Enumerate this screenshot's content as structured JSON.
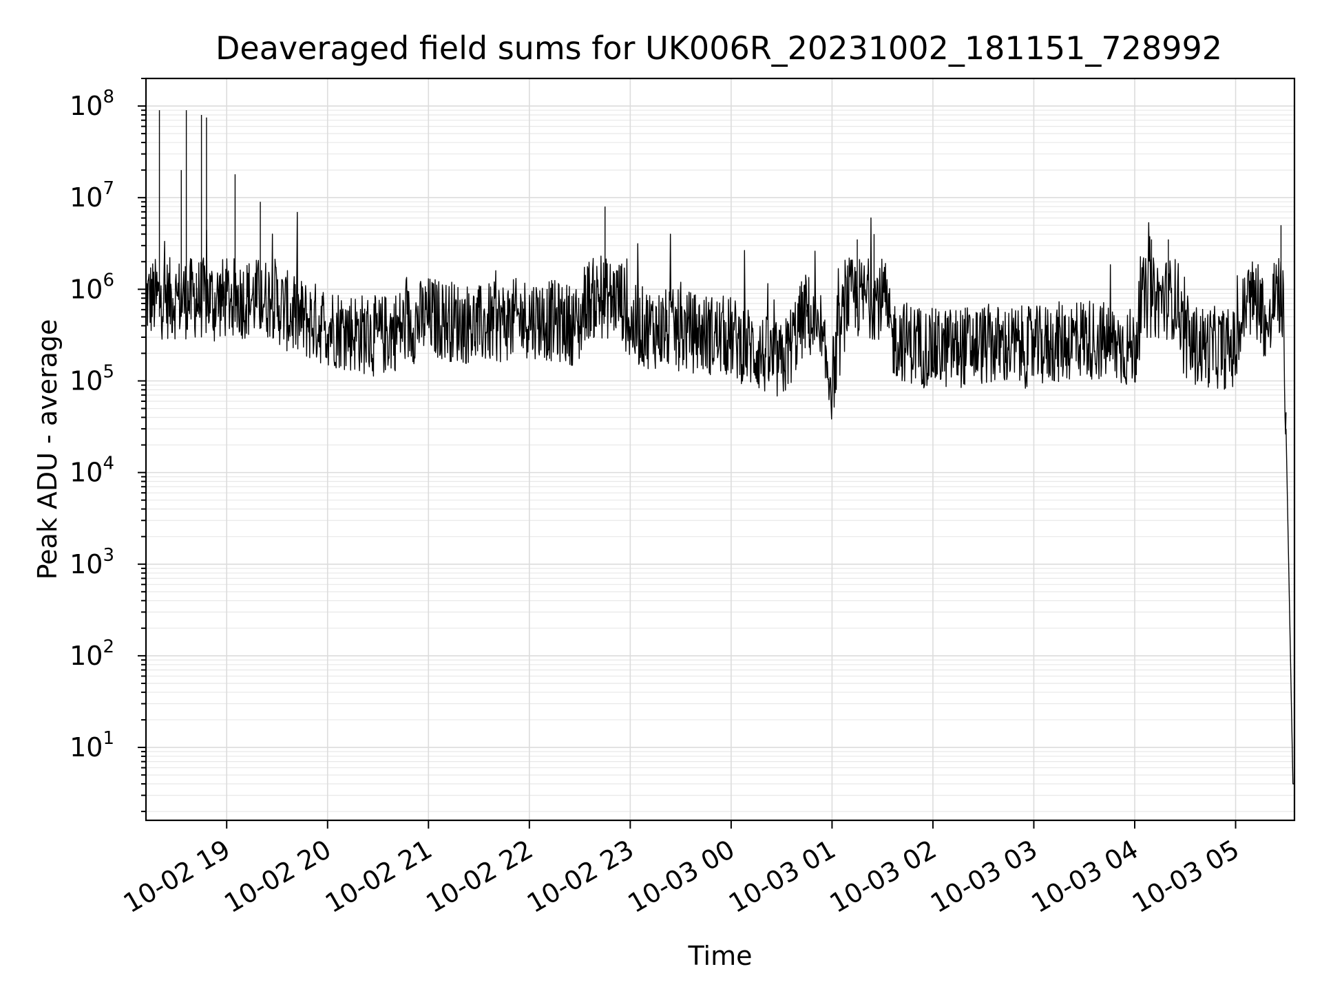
{
  "chart_data": {
    "type": "line",
    "title": "Deaveraged field sums for UK006R_20231002_181151_728992",
    "xlabel": "Time",
    "ylabel": "Peak ADU - average",
    "y_scale": "log",
    "ylim": [
      1.6,
      200000000
    ],
    "xlim": [
      "2023-10-02 18:12",
      "2023-10-03 05:35"
    ],
    "grid": true,
    "legend": "none",
    "line_color": "#000000",
    "x_ticks": [
      "10-02 19",
      "10-02 20",
      "10-02 21",
      "10-02 22",
      "10-02 23",
      "10-03 00",
      "10-03 01",
      "10-03 02",
      "10-03 03",
      "10-03 04",
      "10-03 05"
    ],
    "y_ticks": [
      {
        "base": "10",
        "exp": "1"
      },
      {
        "base": "10",
        "exp": "2"
      },
      {
        "base": "10",
        "exp": "3"
      },
      {
        "base": "10",
        "exp": "4"
      },
      {
        "base": "10",
        "exp": "5"
      },
      {
        "base": "10",
        "exp": "6"
      },
      {
        "base": "10",
        "exp": "7"
      },
      {
        "base": "10",
        "exp": "8"
      }
    ],
    "series": [
      {
        "x": [
          "2023-10-02 18:12",
          "2023-10-02 18:20",
          "2023-10-02 18:28",
          "2023-10-02 18:33",
          "2023-10-02 18:36",
          "2023-10-02 18:42",
          "2023-10-02 18:45",
          "2023-10-02 18:48",
          "2023-10-02 18:52",
          "2023-10-02 18:55",
          "2023-10-02 18:58",
          "2023-10-02 19:05",
          "2023-10-02 19:10",
          "2023-10-02 19:20",
          "2023-10-02 19:30",
          "2023-10-02 19:40",
          "2023-10-02 20:00",
          "2023-10-02 20:30",
          "2023-10-02 21:00",
          "2023-10-02 21:30",
          "2023-10-02 22:00",
          "2023-10-02 22:30",
          "2023-10-02 22:45",
          "2023-10-02 22:50",
          "2023-10-02 23:00",
          "2023-10-02 23:30",
          "2023-10-03 00:00",
          "2023-10-03 00:30",
          "2023-10-03 00:45",
          "2023-10-03 01:00",
          "2023-10-03 01:15",
          "2023-10-03 01:25",
          "2023-10-03 01:35",
          "2023-10-03 02:00",
          "2023-10-03 02:30",
          "2023-10-03 03:00",
          "2023-10-03 03:30",
          "2023-10-03 04:00",
          "2023-10-03 04:10",
          "2023-10-03 04:20",
          "2023-10-03 04:30",
          "2023-10-03 05:00",
          "2023-10-03 05:10",
          "2023-10-03 05:20",
          "2023-10-03 05:27",
          "2023-10-03 05:30",
          "2023-10-03 05:35"
        ],
        "y": [
          700000,
          90000000,
          800000,
          20000000,
          90000000,
          1500000,
          80000000,
          75000000,
          600000,
          1000000,
          900000,
          18000000,
          800000,
          9000000,
          700000,
          500000,
          400000,
          300000,
          500000,
          400000,
          500000,
          400000,
          8000000,
          1500000,
          400000,
          350000,
          300000,
          150000,
          600000,
          100000,
          3500000,
          4000000,
          300000,
          220000,
          250000,
          230000,
          300000,
          220000,
          3500000,
          3500000,
          250000,
          220000,
          1500000,
          300000,
          5000000,
          30000,
          4
        ]
      }
    ]
  }
}
